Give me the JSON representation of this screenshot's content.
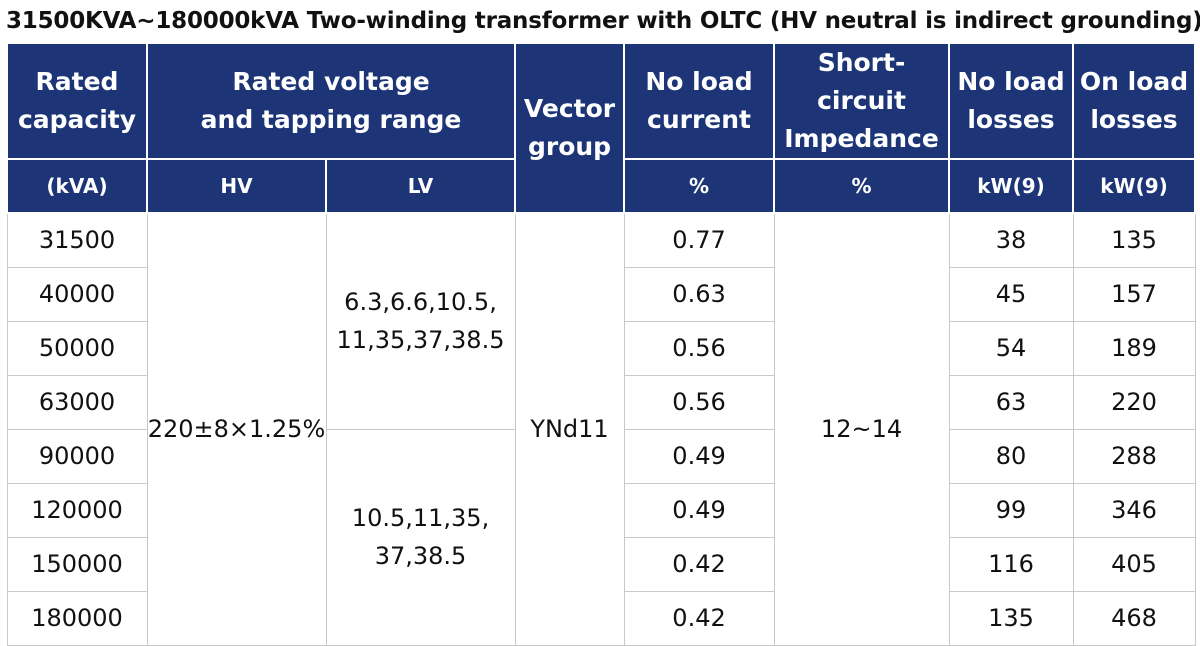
{
  "title": "31500KVA~180000kVA Two-winding transformer with OLTC (HV neutral is indirect grounding)",
  "headers": {
    "rated_capacity": [
      "Rated",
      "capacity"
    ],
    "rated_voltage": [
      "Rated voltage",
      "and tapping range"
    ],
    "vector_group": [
      "Vector",
      "group"
    ],
    "no_load_current": [
      "No load",
      "current"
    ],
    "short_circuit": [
      "Short-circuit",
      "Impedance"
    ],
    "no_load_losses": [
      "No load",
      "losses"
    ],
    "on_load_losses": [
      "On load",
      "losses"
    ]
  },
  "units": {
    "capacity": "(kVA)",
    "hv": "HV",
    "lv": "LV",
    "current": "%",
    "impedance": "%",
    "no_load_losses": "kW(9)",
    "on_load_losses": "kW(9)"
  },
  "merged": {
    "hv": "220±8×1.25%",
    "lv_group1": [
      "6.3,6.6,10.5,",
      "11,35,37,38.5"
    ],
    "lv_group2": [
      "10.5,11,35,",
      "37,38.5"
    ],
    "vector_group": "YNd11",
    "impedance": "12~14"
  },
  "rows": [
    {
      "capacity": "31500",
      "current": "0.77",
      "no_load": "38",
      "on_load": "135"
    },
    {
      "capacity": "40000",
      "current": "0.63",
      "no_load": "45",
      "on_load": "157"
    },
    {
      "capacity": "50000",
      "current": "0.56",
      "no_load": "54",
      "on_load": "189"
    },
    {
      "capacity": "63000",
      "current": "0.56",
      "no_load": "63",
      "on_load": "220"
    },
    {
      "capacity": "90000",
      "current": "0.49",
      "no_load": "80",
      "on_load": "288"
    },
    {
      "capacity": "120000",
      "current": "0.49",
      "no_load": "99",
      "on_load": "346"
    },
    {
      "capacity": "150000",
      "current": "0.42",
      "no_load": "116",
      "on_load": "405"
    },
    {
      "capacity": "180000",
      "current": "0.42",
      "no_load": "135",
      "on_load": "468"
    }
  ],
  "colors": {
    "header_bg": "#1d3577",
    "header_text": "#ffffff",
    "grid": "#c9c9c9"
  }
}
